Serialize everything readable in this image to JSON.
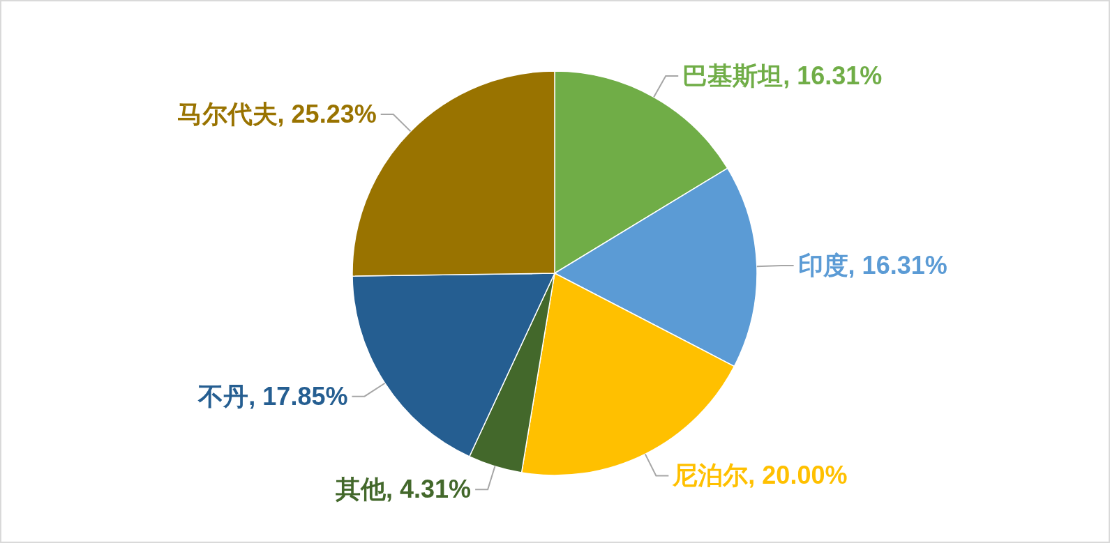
{
  "chart_data": {
    "type": "pie",
    "categories": [
      "巴基斯坦",
      "印度",
      "尼泊尔",
      "其他",
      "不丹",
      "马尔代夫"
    ],
    "values": [
      16.31,
      16.31,
      20.0,
      4.31,
      17.85,
      25.23
    ],
    "value_labels": [
      "16.31%",
      "16.31%",
      "20.00%",
      "4.31%",
      "17.85%",
      "25.23%"
    ],
    "colors": [
      "#70ad47",
      "#5b9bd5",
      "#ffc000",
      "#43682b",
      "#255e91",
      "#997300"
    ],
    "legend": false
  }
}
